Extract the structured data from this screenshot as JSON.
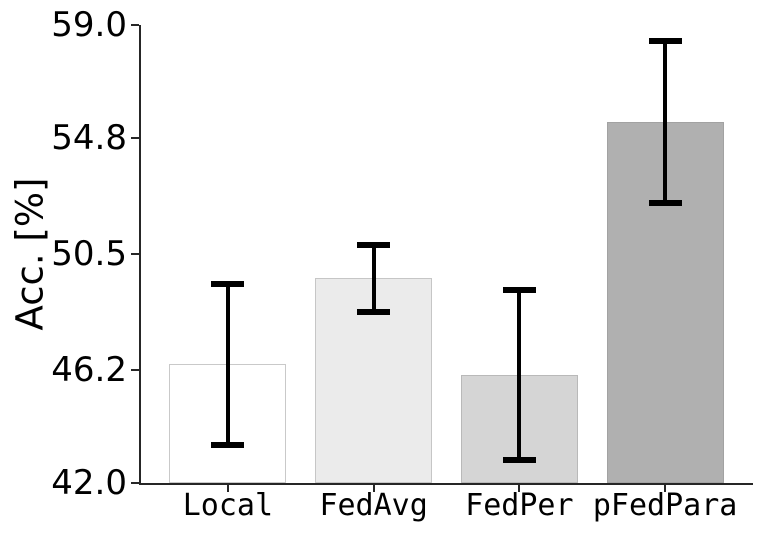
{
  "chart_data": {
    "type": "bar",
    "title": "",
    "xlabel": "",
    "ylabel": "Acc. [%]",
    "ylim": [
      42.0,
      59.0
    ],
    "ytick_labels": [
      "59.0",
      "54.8",
      "50.5",
      "46.2",
      "42.0"
    ],
    "grid": false,
    "legend_position": "none",
    "categories": [
      "Local",
      "FedAvg",
      "FedPer",
      "pFedPara"
    ],
    "series": [
      {
        "name": "accuracy",
        "values": [
          46.4,
          49.6,
          46.0,
          55.4
        ],
        "errors": [
          3.0,
          1.25,
          3.15,
          3.0
        ]
      }
    ],
    "bar_fill_colors": [
      "#ffffff",
      "#ebebeb",
      "#d5d5d5",
      "#b0b0b0"
    ],
    "bar_edge_colors": [
      "#c9c9c9",
      "#c6c6c6",
      "#b9b9b9",
      "#a2a2a2"
    ],
    "error_bar_color": "#000000",
    "axis_color": "#262626",
    "text_color": "#000000"
  }
}
